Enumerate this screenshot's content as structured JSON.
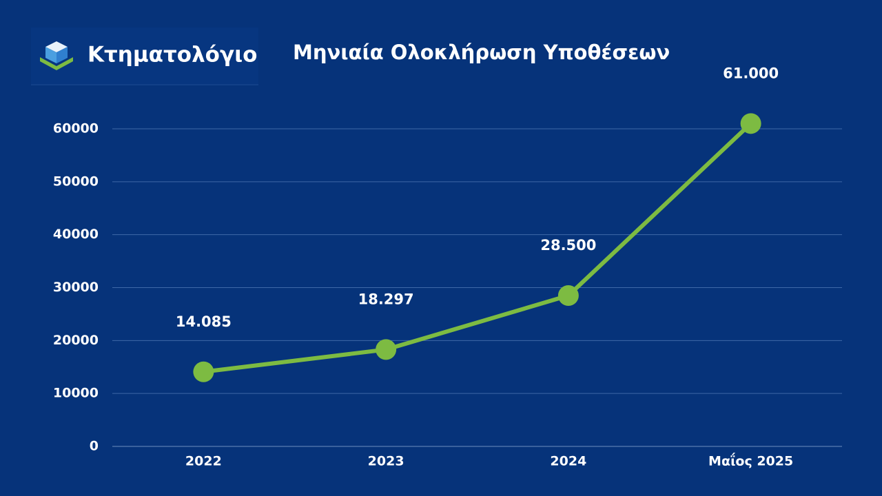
{
  "logo": "Κτηματολόγιο",
  "chart_data": {
    "type": "line",
    "title": "Μηνιαία Ολοκλήρωση Υποθέσεων",
    "categories": [
      "2022",
      "2023",
      "2024",
      "Μαΐος 2025"
    ],
    "values": [
      14085,
      18297,
      28500,
      61000
    ],
    "value_labels": [
      "14.085",
      "18.297",
      "28.500",
      "61.000"
    ],
    "color": "#7dbb42",
    "ylim": [
      0,
      60000
    ],
    "yticks": [
      0,
      10000,
      20000,
      30000,
      40000,
      50000,
      60000
    ],
    "grid": true
  }
}
